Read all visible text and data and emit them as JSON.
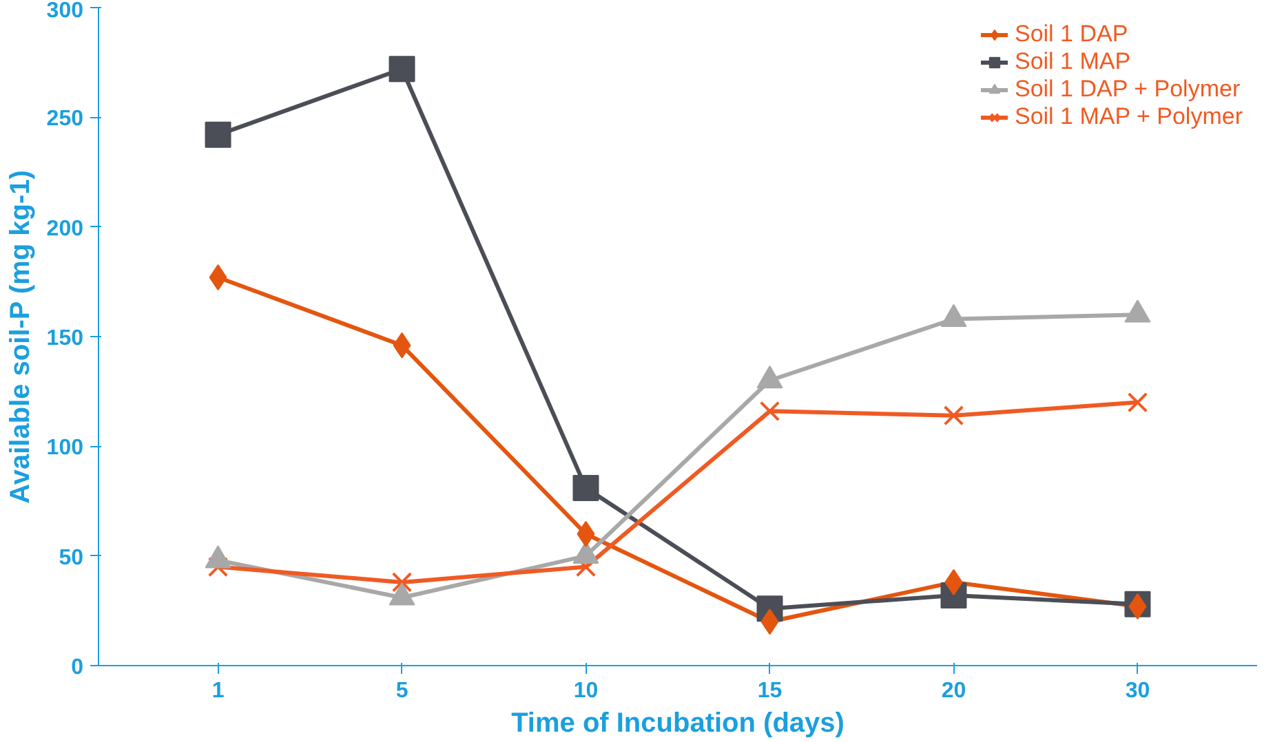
{
  "chart_data": {
    "type": "line",
    "xlabel": "Time of Incubation (days)",
    "ylabel": "Available soil-P (mg kg-1)",
    "categories": [
      "1",
      "5",
      "10",
      "15",
      "20",
      "30"
    ],
    "ylim": [
      0,
      300
    ],
    "yticks": [
      0,
      50,
      100,
      150,
      200,
      250,
      300
    ],
    "grid": false,
    "legend": "top right",
    "series": [
      {
        "name": "Soil 1 DAP",
        "color": "#e4560f",
        "marker": "diamond",
        "values": [
          177,
          146,
          60,
          20,
          38,
          27
        ]
      },
      {
        "name": "Soil 1 MAP",
        "color": "#4b4e56",
        "marker": "square",
        "values": [
          242,
          272,
          81,
          26,
          32,
          28
        ]
      },
      {
        "name": "Soil 1 DAP + Polymer",
        "color": "#a8a8a8",
        "marker": "triangle",
        "values": [
          48,
          31,
          50,
          130,
          158,
          160
        ]
      },
      {
        "name": "Soil 1 MAP + Polymer",
        "color": "#ef5a24",
        "marker": "cross",
        "values": [
          45,
          38,
          45,
          116,
          114,
          120
        ]
      }
    ]
  }
}
